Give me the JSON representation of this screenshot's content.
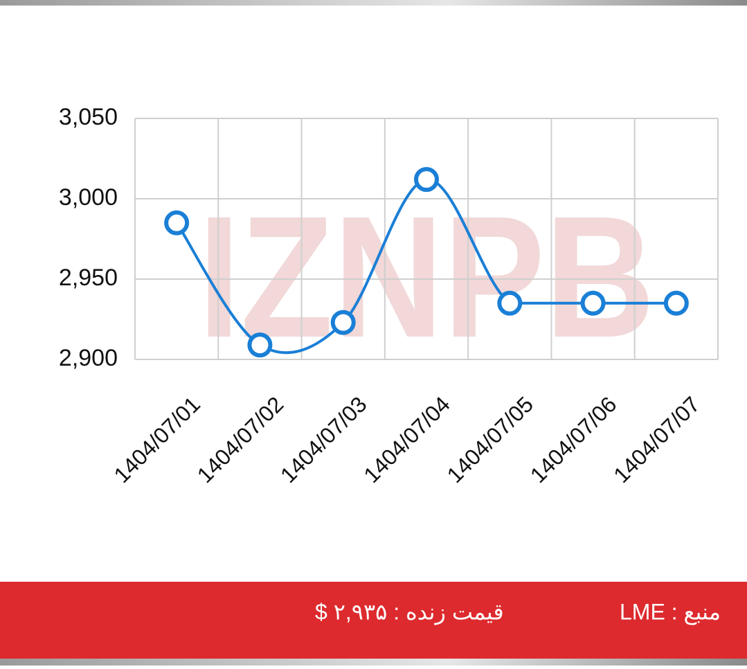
{
  "chart_data": {
    "type": "line",
    "watermark": "IZNPB",
    "categories": [
      "1404/07/01",
      "1404/07/02",
      "1404/07/03",
      "1404/07/04",
      "1404/07/05",
      "1404/07/06",
      "1404/07/07"
    ],
    "series": [
      {
        "name": "LME",
        "color": "#1a7fd6",
        "values": [
          2985,
          2909,
          2923,
          3012,
          2935,
          2935,
          2935
        ]
      }
    ],
    "ylim": [
      2900,
      3050
    ],
    "yticks": [
      {
        "value": 2900,
        "label": "2,900"
      },
      {
        "value": 2950,
        "label": "2,950"
      },
      {
        "value": 3000,
        "label": "3,000"
      },
      {
        "value": 3050,
        "label": "3,050"
      }
    ],
    "grid": true
  },
  "footer": {
    "source": "منبع : LME",
    "live_price": "قیمت زنده : ۲,۹۳۵ $"
  }
}
